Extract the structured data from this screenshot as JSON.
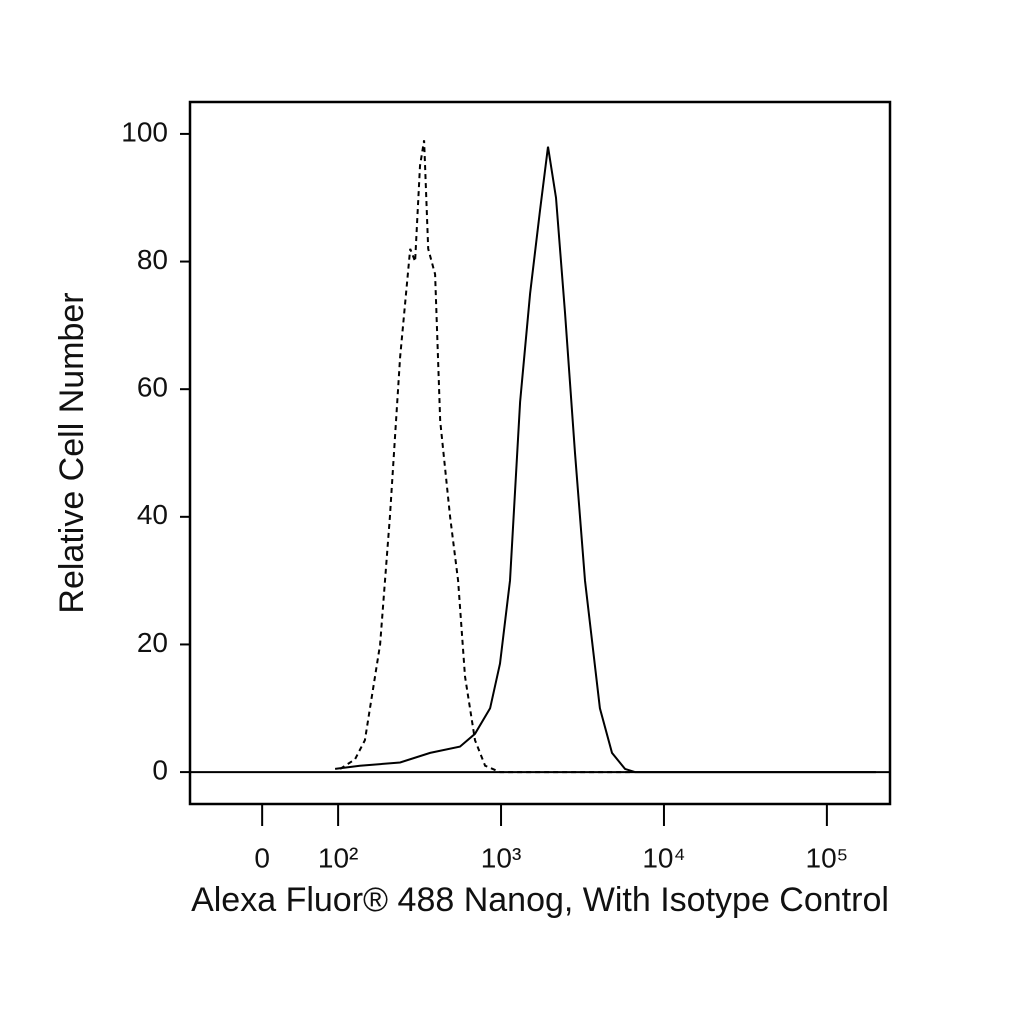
{
  "chart_data": {
    "type": "line",
    "xlabel": "Alexa Fluor® 488 Nanog, With Isotype Control",
    "ylabel": "Relative Cell Number",
    "xscale": "biexponential",
    "xlim": [
      -95,
      244000
    ],
    "xticks": [
      0,
      {
        "value": 100,
        "label": "10²"
      },
      {
        "value": 1000,
        "label": "10³"
      },
      {
        "value": 10000,
        "label": "10⁴"
      },
      {
        "value": 100000,
        "label": "10⁵"
      }
    ],
    "ylim": [
      -5,
      105
    ],
    "yticks": [
      0,
      20,
      40,
      60,
      80,
      100
    ],
    "series": [
      {
        "color": "#000000",
        "dash": "dashed",
        "x": [
          103,
          127,
          146,
          181,
          208,
          240,
          277,
          297,
          318,
          337,
          357,
          394,
          423,
          487,
          545,
          601,
          692,
          798,
          986,
          6180
        ],
        "values": [
          0.5,
          2,
          5,
          20,
          40,
          65,
          82,
          80,
          95,
          99,
          82,
          78,
          55,
          40,
          30,
          15,
          5,
          1,
          0,
          0
        ]
      },
      {
        "color": "#000000",
        "dash": "solid",
        "x": [
          96,
          136,
          240,
          367,
          560,
          692,
          857,
          986,
          1135,
          1309,
          1507,
          1735,
          1941,
          2173,
          2470,
          2846,
          3275,
          4046,
          4797,
          5768,
          6637,
          200000
        ],
        "values": [
          0.5,
          1,
          1.5,
          3,
          4,
          6,
          10,
          17,
          30,
          58,
          75,
          88,
          98,
          90,
          72,
          50,
          30,
          10,
          3,
          0.5,
          0,
          0
        ]
      }
    ]
  }
}
